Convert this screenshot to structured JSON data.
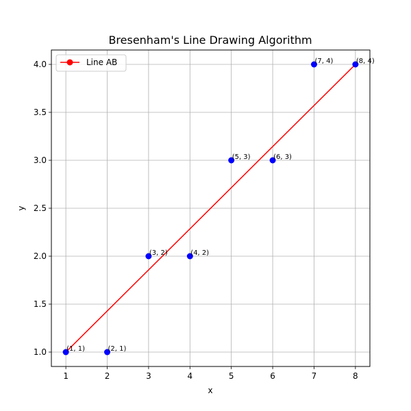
{
  "chart_data": {
    "type": "line",
    "title": "Bresenham's Line Drawing Algorithm",
    "xlabel": "x",
    "ylabel": "y",
    "xlim": [
      0.65,
      8.35
    ],
    "ylim": [
      0.85,
      4.15
    ],
    "xticks": [
      1,
      2,
      3,
      4,
      5,
      6,
      7,
      8
    ],
    "yticks": [
      1.0,
      1.5,
      2.0,
      2.5,
      3.0,
      3.5,
      4.0
    ],
    "xtick_labels": [
      "1",
      "2",
      "3",
      "4",
      "5",
      "6",
      "7",
      "8"
    ],
    "ytick_labels": [
      "1.0",
      "1.5",
      "2.0",
      "2.5",
      "3.0",
      "3.5",
      "4.0"
    ],
    "grid": true,
    "legend_position": "top-left",
    "line": {
      "name": "Line AB",
      "color": "#ff0000",
      "marker": "circle",
      "x": [
        1,
        8
      ],
      "y": [
        1,
        4
      ]
    },
    "points": {
      "color": "#0000ff",
      "x": [
        1,
        2,
        3,
        4,
        5,
        6,
        7,
        8
      ],
      "y": [
        1,
        1,
        2,
        2,
        3,
        3,
        4,
        4
      ],
      "labels": [
        "(1, 1)",
        "(2, 1)",
        "(3, 2)",
        "(4, 2)",
        "(5, 3)",
        "(6, 3)",
        "(7, 4)",
        "(8, 4)"
      ]
    }
  }
}
